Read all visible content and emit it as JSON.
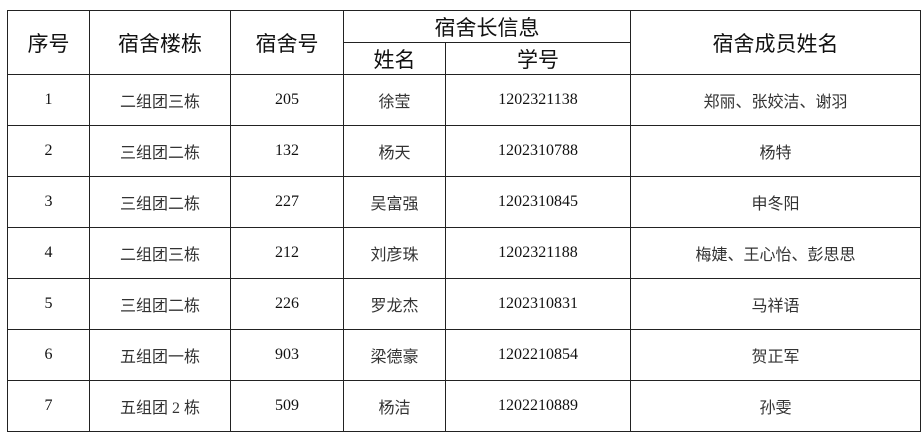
{
  "table": {
    "headers": {
      "index": "序号",
      "building": "宿舍楼栋",
      "room": "宿舍号",
      "leader_group": "宿舍长信息",
      "leader_name": "姓名",
      "leader_id": "学号",
      "members": "宿舍成员姓名"
    },
    "rows": [
      {
        "index": "1",
        "building": "二组团三栋",
        "room": "205",
        "leader_name": "徐莹",
        "leader_id": "1202321138",
        "members": "郑丽、张姣洁、谢羽"
      },
      {
        "index": "2",
        "building": "三组团二栋",
        "room": "132",
        "leader_name": "杨天",
        "leader_id": "1202310788",
        "members": "杨特"
      },
      {
        "index": "3",
        "building": "三组团二栋",
        "room": "227",
        "leader_name": "吴富强",
        "leader_id": "1202310845",
        "members": "申冬阳"
      },
      {
        "index": "4",
        "building": "二组团三栋",
        "room": "212",
        "leader_name": "刘彦珠",
        "leader_id": "1202321188",
        "members": "梅婕、王心怡、彭思思"
      },
      {
        "index": "5",
        "building": "三组团二栋",
        "room": "226",
        "leader_name": "罗龙杰",
        "leader_id": "1202310831",
        "members": "马祥语"
      },
      {
        "index": "6",
        "building": "五组团一栋",
        "room": "903",
        "leader_name": "梁德豪",
        "leader_id": "1202210854",
        "members": "贺正军"
      },
      {
        "index": "7",
        "building": "五组团 2 栋",
        "room": "509",
        "leader_name": "杨洁",
        "leader_id": "1202210889",
        "members": "孙雯"
      }
    ]
  }
}
